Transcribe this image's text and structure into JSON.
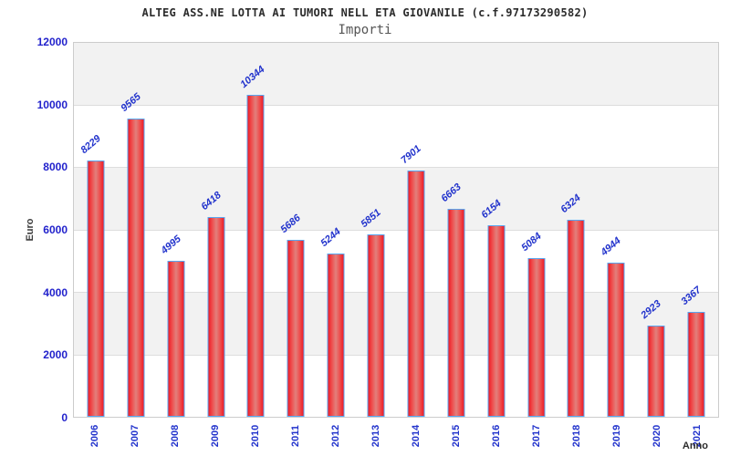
{
  "header": {
    "title": "ALTEG ASS.NE LOTTA AI TUMORI NELL ETA GIOVANILE (c.f.97173290582)",
    "subtitle": "Importi"
  },
  "chart_data": {
    "type": "bar",
    "title": "ALTEG ASS.NE LOTTA AI TUMORI NELL ETA GIOVANILE (c.f.97173290582)",
    "subtitle": "Importi",
    "xlabel": "Anno",
    "ylabel": "Euro",
    "categories": [
      "2006",
      "2007",
      "2008",
      "2009",
      "2010",
      "2011",
      "2012",
      "2013",
      "2014",
      "2015",
      "2016",
      "2017",
      "2018",
      "2019",
      "2020",
      "2021"
    ],
    "values": [
      8229,
      9565,
      4995,
      6418,
      10344,
      5686,
      5244,
      5851,
      7901,
      6663,
      6154,
      5084,
      6324,
      4944,
      2923,
      3367
    ],
    "ylim": [
      0,
      12000
    ],
    "yticks": [
      0,
      2000,
      4000,
      6000,
      8000,
      10000,
      12000
    ],
    "grid": "horizontal gridlines every 2000, alternating gray/white bands",
    "legend": "none",
    "bar_labels_rotation_deg": -40
  },
  "colors": {
    "bar_edge": "#ee1b26",
    "bar_center": "#e2807c",
    "bar_border": "#58a6f0",
    "tick_label_blue": "#2222cc",
    "data_label_blue": "#2233cc",
    "band_gray": "#f2f2f2",
    "grid_line": "#dddddd",
    "plot_border": "#cccccc",
    "title_color": "#2b2b2b",
    "subtitle_color": "#555555"
  }
}
